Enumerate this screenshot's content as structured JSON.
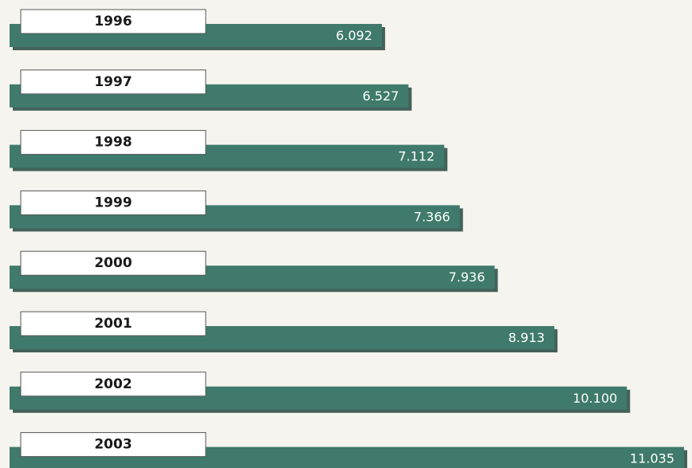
{
  "chart_data": {
    "type": "bar",
    "orientation": "horizontal",
    "categories": [
      "1996",
      "1997",
      "1998",
      "1999",
      "2000",
      "2001",
      "2002",
      "2003"
    ],
    "values": [
      6092,
      6527,
      7112,
      7366,
      7936,
      8913,
      10100,
      11035
    ],
    "value_labels": [
      "6.092",
      "6.527",
      "7.112",
      "7.366",
      "7.936",
      "8.913",
      "10.100",
      "11.035"
    ],
    "color": "#3f7a6c"
  }
}
